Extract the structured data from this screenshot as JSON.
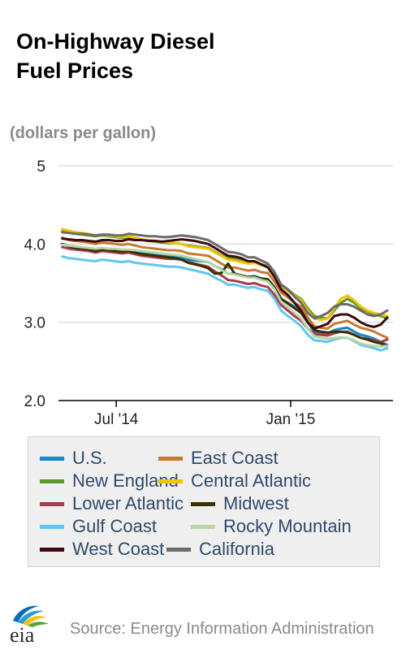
{
  "title_line1": "On-Highway Diesel",
  "title_line2": "Fuel Prices",
  "unit_label": "(dollars per gallon)",
  "source": "Source: Energy Information Administration",
  "logo_text": "eia",
  "colors": {
    "grid": "#d0d0d0",
    "axis": "#000000",
    "tick_text": "#222222",
    "legend_text": "#2f4a6b",
    "source_text": "#8a8a8a"
  },
  "chart_data": {
    "type": "line",
    "ylim": [
      2.0,
      5.0
    ],
    "y_ticks": [
      "5",
      "4.0",
      "3.0",
      "2.0"
    ],
    "y_tick_values": [
      5,
      4,
      3,
      2
    ],
    "x_tick_labels": [
      "Jul '14",
      "Jan '15"
    ],
    "grid": true,
    "legend_position": "bottom",
    "x": [
      "2014-05-05",
      "2014-05-12",
      "2014-05-19",
      "2014-05-26",
      "2014-06-02",
      "2014-06-09",
      "2014-06-16",
      "2014-06-23",
      "2014-06-30",
      "2014-07-07",
      "2014-07-14",
      "2014-07-21",
      "2014-07-28",
      "2014-08-04",
      "2014-08-11",
      "2014-08-18",
      "2014-08-25",
      "2014-09-01",
      "2014-09-08",
      "2014-09-15",
      "2014-09-22",
      "2014-09-29",
      "2014-10-06",
      "2014-10-13",
      "2014-10-20",
      "2014-10-27",
      "2014-11-03",
      "2014-11-10",
      "2014-11-17",
      "2014-11-24",
      "2014-12-01",
      "2014-12-08",
      "2014-12-15",
      "2014-12-22",
      "2014-12-29",
      "2015-01-05",
      "2015-01-12",
      "2015-01-19",
      "2015-01-26",
      "2015-02-02",
      "2015-02-09",
      "2015-02-16",
      "2015-02-23",
      "2015-03-02",
      "2015-03-09",
      "2015-03-16",
      "2015-03-23",
      "2015-03-30",
      "2015-04-06",
      "2015-04-13"
    ],
    "series": [
      {
        "name": "U.S.",
        "color": "#1289c8",
        "values": [
          4.0,
          3.98,
          3.96,
          3.95,
          3.94,
          3.92,
          3.95,
          3.93,
          3.92,
          3.91,
          3.92,
          3.9,
          3.88,
          3.87,
          3.86,
          3.85,
          3.84,
          3.84,
          3.83,
          3.8,
          3.79,
          3.78,
          3.77,
          3.72,
          3.68,
          3.62,
          3.62,
          3.6,
          3.58,
          3.59,
          3.56,
          3.55,
          3.45,
          3.3,
          3.25,
          3.2,
          3.15,
          3.0,
          2.88,
          2.87,
          2.86,
          2.9,
          2.92,
          2.93,
          2.88,
          2.84,
          2.82,
          2.79,
          2.75,
          2.71
        ]
      },
      {
        "name": "East Coast",
        "color": "#c77b30",
        "values": [
          4.08,
          4.05,
          4.04,
          4.03,
          4.02,
          4.0,
          4.02,
          4.01,
          4.0,
          3.99,
          4.0,
          3.98,
          3.96,
          3.95,
          3.94,
          3.93,
          3.92,
          3.92,
          3.91,
          3.88,
          3.87,
          3.86,
          3.85,
          3.8,
          3.75,
          3.7,
          3.7,
          3.68,
          3.66,
          3.67,
          3.64,
          3.63,
          3.52,
          3.38,
          3.32,
          3.25,
          3.2,
          3.06,
          2.95,
          2.93,
          2.92,
          2.98,
          3.0,
          3.02,
          2.97,
          2.93,
          2.91,
          2.88,
          2.84,
          2.8
        ]
      },
      {
        "name": "New England",
        "color": "#5a9a2c",
        "values": [
          4.17,
          4.15,
          4.13,
          4.12,
          4.11,
          4.1,
          4.11,
          4.1,
          4.09,
          4.08,
          4.08,
          4.07,
          4.05,
          4.04,
          4.03,
          4.02,
          4.01,
          4.01,
          4.0,
          3.98,
          3.97,
          3.96,
          3.95,
          3.9,
          3.86,
          3.82,
          3.81,
          3.79,
          3.77,
          3.77,
          3.74,
          3.72,
          3.62,
          3.48,
          3.42,
          3.35,
          3.3,
          3.18,
          3.08,
          3.06,
          3.05,
          3.15,
          3.25,
          3.3,
          3.25,
          3.18,
          3.14,
          3.1,
          3.08,
          3.05
        ]
      },
      {
        "name": "Central Atlantic",
        "color": "#f2c400",
        "values": [
          4.19,
          4.17,
          4.15,
          4.14,
          4.13,
          4.11,
          4.12,
          4.11,
          4.1,
          4.09,
          4.1,
          4.08,
          4.06,
          4.05,
          4.04,
          4.03,
          4.02,
          4.01,
          4.0,
          3.97,
          3.96,
          3.95,
          3.94,
          3.89,
          3.85,
          3.8,
          3.79,
          3.77,
          3.75,
          3.76,
          3.73,
          3.71,
          3.61,
          3.46,
          3.4,
          3.34,
          3.28,
          3.15,
          3.05,
          3.03,
          3.05,
          3.18,
          3.3,
          3.34,
          3.28,
          3.2,
          3.15,
          3.12,
          3.1,
          3.08
        ]
      },
      {
        "name": "Lower Atlantic",
        "color": "#a93b4c",
        "values": [
          3.96,
          3.94,
          3.93,
          3.92,
          3.91,
          3.89,
          3.91,
          3.9,
          3.89,
          3.88,
          3.89,
          3.87,
          3.85,
          3.84,
          3.83,
          3.82,
          3.81,
          3.81,
          3.8,
          3.77,
          3.75,
          3.73,
          3.71,
          3.65,
          3.6,
          3.54,
          3.53,
          3.51,
          3.49,
          3.5,
          3.47,
          3.45,
          3.35,
          3.22,
          3.15,
          3.08,
          3.02,
          2.92,
          2.85,
          2.84,
          2.83,
          2.86,
          2.88,
          2.88,
          2.84,
          2.8,
          2.79,
          2.77,
          2.75,
          2.78
        ]
      },
      {
        "name": "Midwest",
        "color": "#3a3000",
        "values": [
          4.0,
          3.97,
          3.95,
          3.94,
          3.93,
          3.91,
          3.93,
          3.92,
          3.91,
          3.9,
          3.91,
          3.89,
          3.87,
          3.86,
          3.85,
          3.84,
          3.83,
          3.82,
          3.8,
          3.76,
          3.74,
          3.72,
          3.69,
          3.62,
          3.63,
          3.75,
          3.62,
          3.6,
          3.58,
          3.58,
          3.56,
          3.55,
          3.44,
          3.3,
          3.24,
          3.18,
          3.12,
          3.0,
          2.9,
          2.88,
          2.87,
          2.88,
          2.88,
          2.87,
          2.84,
          2.8,
          2.78,
          2.75,
          2.73,
          2.7
        ]
      },
      {
        "name": "Gulf Coast",
        "color": "#62c6f0",
        "values": [
          3.84,
          3.82,
          3.81,
          3.8,
          3.79,
          3.78,
          3.8,
          3.79,
          3.78,
          3.77,
          3.78,
          3.76,
          3.75,
          3.74,
          3.73,
          3.72,
          3.71,
          3.71,
          3.7,
          3.68,
          3.66,
          3.64,
          3.62,
          3.57,
          3.53,
          3.48,
          3.48,
          3.46,
          3.44,
          3.45,
          3.42,
          3.4,
          3.3,
          3.15,
          3.08,
          3.02,
          2.95,
          2.84,
          2.77,
          2.76,
          2.75,
          2.78,
          2.8,
          2.8,
          2.76,
          2.71,
          2.69,
          2.67,
          2.64,
          2.67
        ]
      },
      {
        "name": "Rocky Mountain",
        "color": "#b9d6a8",
        "values": [
          3.99,
          3.98,
          3.97,
          3.96,
          3.95,
          3.94,
          3.95,
          3.94,
          3.94,
          3.93,
          3.93,
          3.92,
          3.91,
          3.9,
          3.89,
          3.88,
          3.87,
          3.86,
          3.85,
          3.83,
          3.81,
          3.79,
          3.77,
          3.72,
          3.67,
          3.62,
          3.61,
          3.59,
          3.57,
          3.57,
          3.54,
          3.52,
          3.42,
          3.26,
          3.19,
          3.12,
          3.05,
          2.92,
          2.82,
          2.8,
          2.79,
          2.8,
          2.81,
          2.8,
          2.77,
          2.73,
          2.71,
          2.7,
          2.69,
          2.7
        ]
      },
      {
        "name": "West Coast",
        "color": "#3d0a10",
        "values": [
          4.07,
          4.06,
          4.05,
          4.05,
          4.04,
          4.03,
          4.05,
          4.05,
          4.04,
          4.04,
          4.06,
          4.05,
          4.05,
          4.04,
          4.04,
          4.03,
          4.04,
          4.05,
          4.06,
          4.05,
          4.04,
          4.02,
          4.0,
          3.95,
          3.9,
          3.85,
          3.84,
          3.82,
          3.78,
          3.78,
          3.74,
          3.7,
          3.58,
          3.42,
          3.35,
          3.25,
          3.15,
          3.0,
          2.92,
          2.95,
          2.98,
          3.08,
          3.1,
          3.1,
          3.06,
          3.0,
          2.96,
          2.94,
          2.97,
          3.06
        ]
      },
      {
        "name": "California",
        "color": "#6b6b6b",
        "values": [
          4.15,
          4.14,
          4.13,
          4.13,
          4.12,
          4.11,
          4.12,
          4.12,
          4.11,
          4.11,
          4.13,
          4.12,
          4.11,
          4.1,
          4.1,
          4.09,
          4.09,
          4.1,
          4.11,
          4.1,
          4.09,
          4.07,
          4.05,
          4.0,
          3.95,
          3.9,
          3.89,
          3.87,
          3.83,
          3.83,
          3.79,
          3.75,
          3.64,
          3.48,
          3.42,
          3.33,
          3.25,
          3.12,
          3.05,
          3.08,
          3.12,
          3.2,
          3.23,
          3.23,
          3.2,
          3.15,
          3.1,
          3.08,
          3.1,
          3.15
        ]
      }
    ]
  }
}
